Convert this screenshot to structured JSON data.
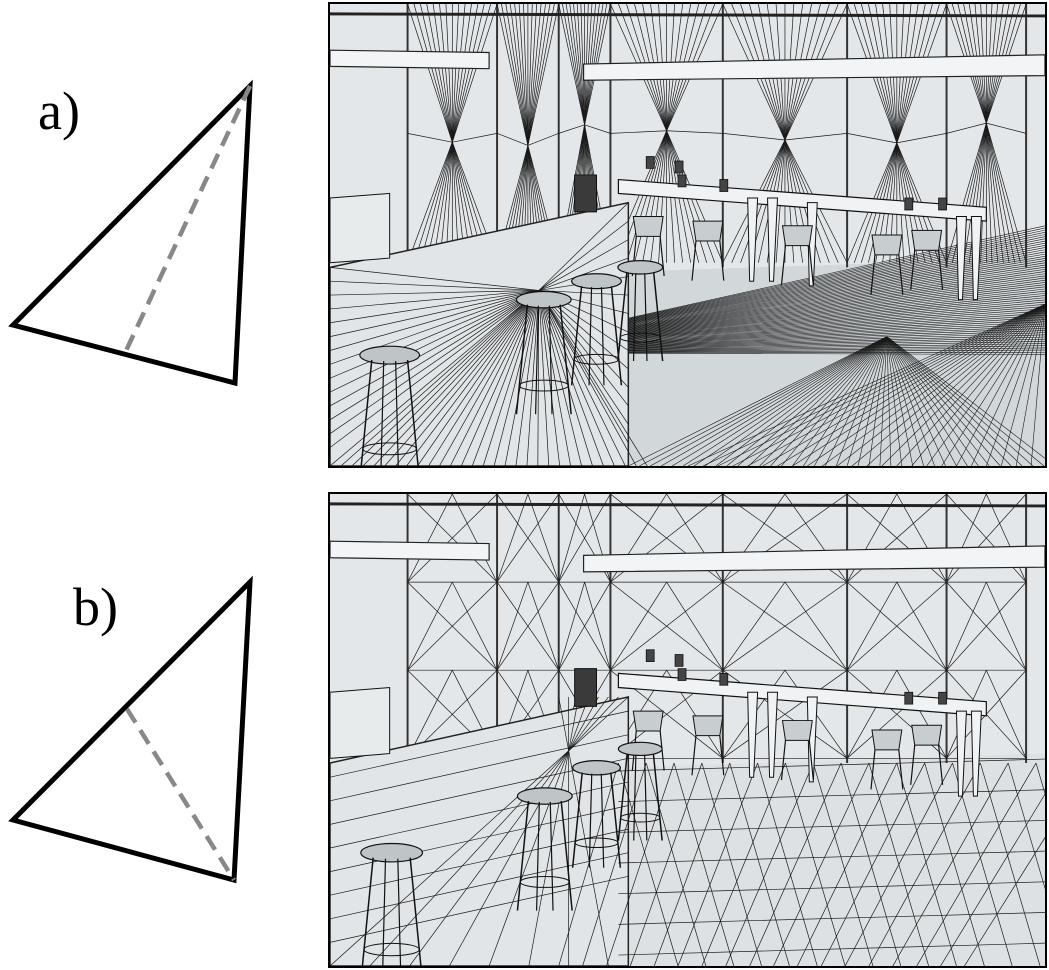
{
  "figure": {
    "part_a": {
      "label": "a)",
      "diagonal_color": "#888888"
    },
    "part_b": {
      "label": "b)",
      "diagonal_color": "#888888"
    },
    "render_a": {
      "description_icon": "wireframe-render-icon",
      "mesh": "sliver-triangles"
    },
    "render_b": {
      "description_icon": "wireframe-render-icon",
      "mesh": "well-shaped-triangles"
    },
    "colors": {
      "edge": "#000000",
      "dashed_edge": "#888888",
      "surface": "#d9dee1"
    }
  }
}
